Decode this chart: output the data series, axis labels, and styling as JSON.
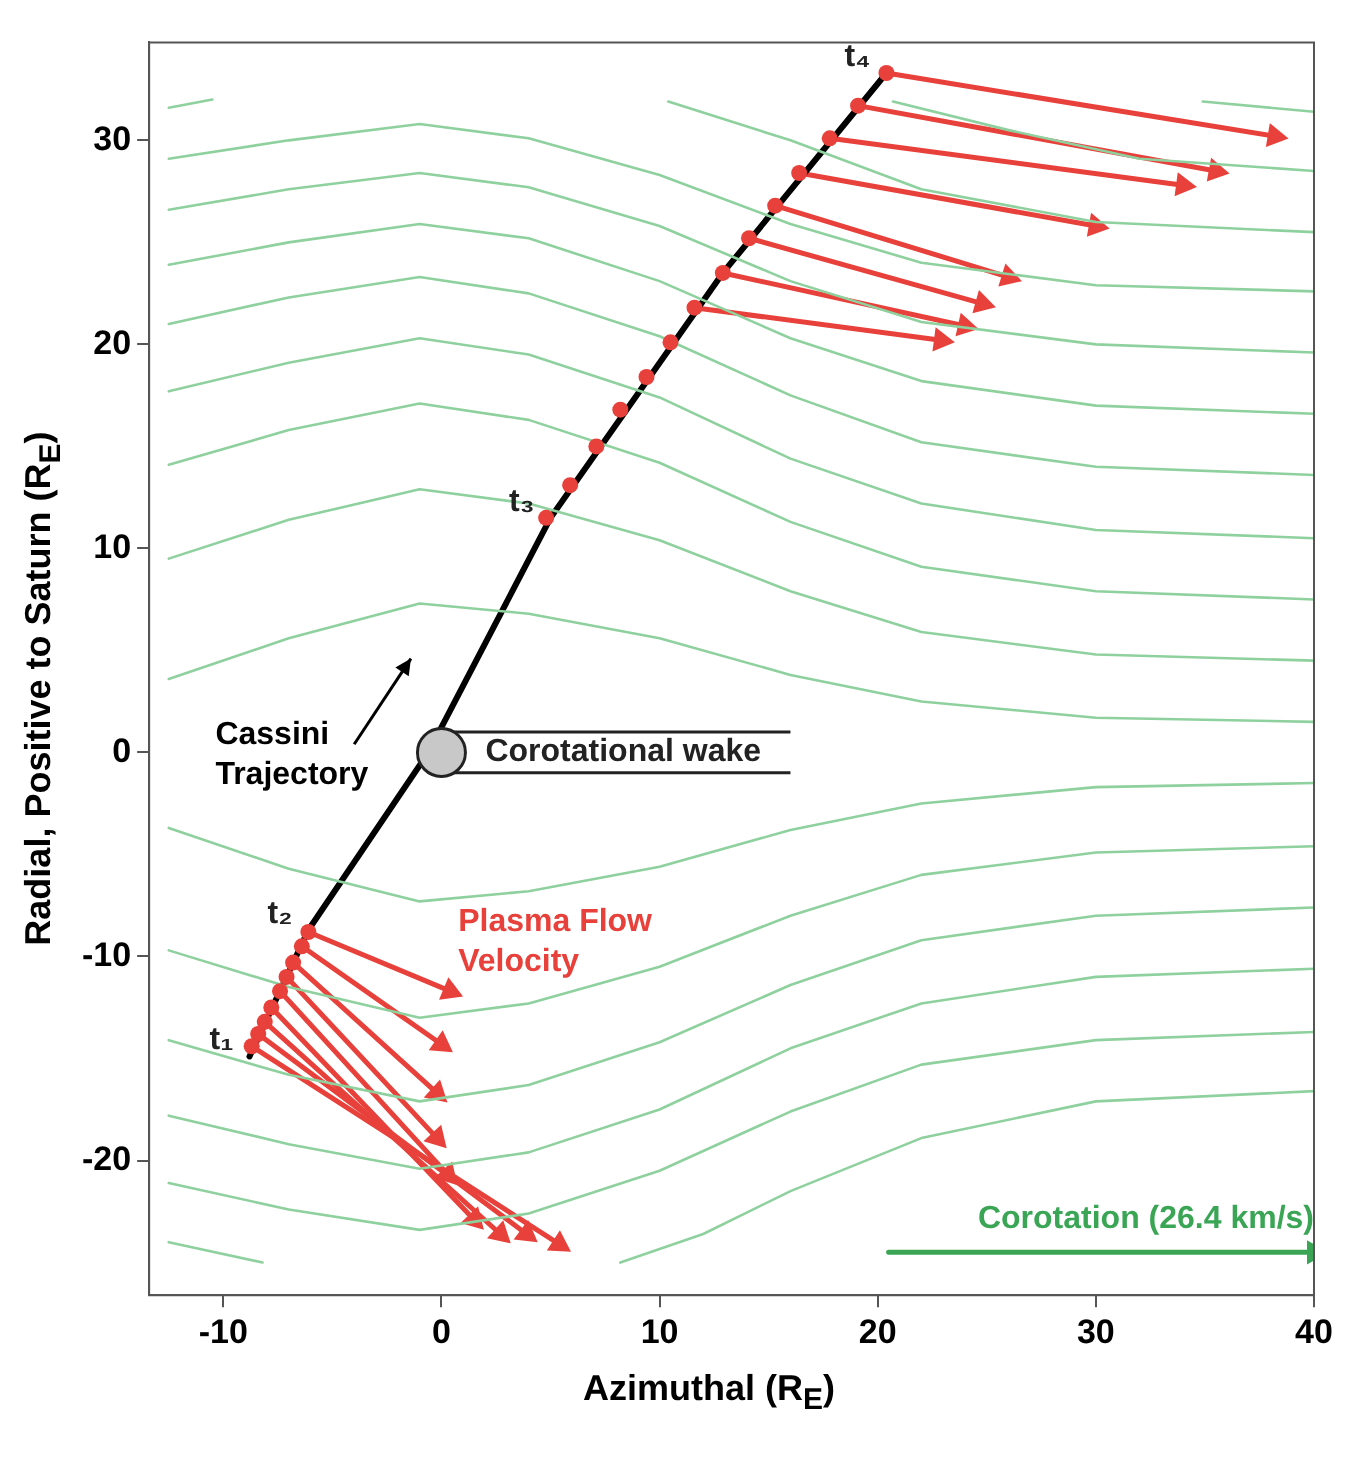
{
  "chart_data": {
    "type": "line",
    "xlabel": "Azimuthal (R$_{E}$)",
    "ylabel": "Radial, Positive to Saturn (R$_{E}$)",
    "xlim": [
      -13.4,
      40
    ],
    "ylim": [
      -26.6,
      34.8
    ],
    "xticks": [
      -10,
      0,
      10,
      20,
      30,
      40
    ],
    "yticks": [
      -20,
      -10,
      0,
      10,
      20,
      30
    ],
    "grid": false,
    "legend": false,
    "annotations": [
      "Corotational wake",
      {
        "text": "t₁",
        "x": -8.8,
        "y": -14.9
      },
      {
        "text": "t₂",
        "x": -6.1,
        "y": -8.7
      },
      {
        "text": "t₃",
        "x": 5.0,
        "y": 11.5
      },
      {
        "text": "t₄",
        "x": 20.4,
        "y": 33.3
      }
    ],
    "series": [
      {
        "type": "line",
        "color": "#8fd19e",
        "marker": "none",
        "x": [
          -12.5,
          -7,
          -1,
          4,
          10,
          16,
          22,
          30,
          40
        ],
        "values": [
          3.6,
          5.6,
          7.3,
          6.8,
          5.6,
          3.8,
          2.5,
          1.7,
          1.5
        ]
      },
      {
        "type": "line",
        "color": "#8fd19e",
        "marker": "none",
        "x": [
          -12.5,
          -7,
          -1,
          4,
          10,
          16,
          22,
          30,
          40
        ],
        "values": [
          9.5,
          11.4,
          12.9,
          12.2,
          10.4,
          7.9,
          5.9,
          4.8,
          4.5
        ]
      },
      {
        "type": "line",
        "color": "#8fd19e",
        "marker": "none",
        "x": [
          -12.5,
          -7,
          -1,
          4,
          10,
          16,
          22,
          30,
          40
        ],
        "values": [
          14.1,
          15.8,
          17.1,
          16.3,
          14.2,
          11.3,
          9.1,
          7.9,
          7.5
        ]
      },
      {
        "type": "line",
        "color": "#8fd19e",
        "marker": "none",
        "x": [
          -12.5,
          -7,
          -1,
          4,
          10,
          16,
          22,
          30,
          40
        ],
        "values": [
          17.7,
          19.1,
          20.3,
          19.5,
          17.4,
          14.4,
          12.2,
          10.9,
          10.5
        ]
      },
      {
        "type": "line",
        "color": "#8fd19e",
        "marker": "none",
        "x": [
          -12.5,
          -7,
          -1,
          4,
          10,
          16,
          22,
          30,
          40
        ],
        "values": [
          21.0,
          22.3,
          23.3,
          22.5,
          20.4,
          17.5,
          15.2,
          14.0,
          13.6
        ]
      },
      {
        "type": "line",
        "color": "#8fd19e",
        "marker": "none",
        "x": [
          -12.5,
          -7,
          -1,
          4,
          10,
          16,
          22,
          30,
          40
        ],
        "values": [
          23.9,
          25.0,
          25.9,
          25.2,
          23.1,
          20.3,
          18.2,
          17.0,
          16.6
        ]
      },
      {
        "type": "line",
        "color": "#8fd19e",
        "marker": "none",
        "x": [
          -12.5,
          -7,
          -1,
          4,
          10,
          16,
          22,
          30,
          40
        ],
        "values": [
          26.6,
          27.6,
          28.4,
          27.7,
          25.8,
          23.1,
          21.1,
          20.0,
          19.6
        ]
      },
      {
        "type": "line",
        "color": "#8fd19e",
        "marker": "none",
        "x": [
          -12.5,
          -7,
          -1,
          4,
          10,
          16,
          22,
          30,
          40
        ],
        "values": [
          29.1,
          30.0,
          30.8,
          30.1,
          28.3,
          25.9,
          24.0,
          22.9,
          22.6
        ]
      },
      {
        "type": "line",
        "color": "#8fd19e",
        "marker": "none",
        "x": [
          -12.5,
          -10.5
        ],
        "values": [
          31.6,
          32.0
        ]
      },
      {
        "type": "line",
        "color": "#8fd19e",
        "marker": "none",
        "x": [
          10.4,
          16,
          22,
          30,
          40
        ],
        "values": [
          31.9,
          30.0,
          27.6,
          26.0,
          25.5
        ]
      },
      {
        "type": "line",
        "color": "#8fd19e",
        "marker": "none",
        "x": [
          20.7,
          26,
          32,
          40
        ],
        "values": [
          31.9,
          30.5,
          29.1,
          28.5
        ]
      },
      {
        "type": "line",
        "color": "#8fd19e",
        "marker": "none",
        "x": [
          34.9,
          40
        ],
        "values": [
          31.9,
          31.4
        ]
      },
      {
        "type": "line",
        "color": "#8fd19e",
        "marker": "none",
        "x": [
          -12.5,
          -7,
          -1,
          4,
          10,
          16,
          22,
          30,
          40
        ],
        "values": [
          -3.7,
          -5.7,
          -7.3,
          -6.8,
          -5.6,
          -3.8,
          -2.5,
          -1.7,
          -1.5
        ]
      },
      {
        "type": "line",
        "color": "#8fd19e",
        "marker": "none",
        "x": [
          -12.5,
          -7,
          -1,
          4,
          10,
          16,
          22,
          30,
          40
        ],
        "values": [
          -9.7,
          -11.5,
          -13.0,
          -12.3,
          -10.5,
          -8.0,
          -6.0,
          -4.9,
          -4.6
        ]
      },
      {
        "type": "line",
        "color": "#8fd19e",
        "marker": "none",
        "x": [
          -12.5,
          -7,
          -1,
          4,
          10,
          16,
          22,
          30,
          40
        ],
        "values": [
          -14.1,
          -15.8,
          -17.1,
          -16.3,
          -14.2,
          -11.4,
          -9.2,
          -8.0,
          -7.6
        ]
      },
      {
        "type": "line",
        "color": "#8fd19e",
        "marker": "none",
        "x": [
          -12.5,
          -7,
          -1,
          4,
          10,
          16,
          22,
          30,
          40
        ],
        "values": [
          -17.8,
          -19.2,
          -20.4,
          -19.6,
          -17.5,
          -14.5,
          -12.3,
          -11.0,
          -10.6
        ]
      },
      {
        "type": "line",
        "color": "#8fd19e",
        "marker": "none",
        "x": [
          -12.5,
          -7,
          -1,
          4,
          10,
          16,
          22,
          30,
          40
        ],
        "values": [
          -21.1,
          -22.4,
          -23.4,
          -22.6,
          -20.5,
          -17.6,
          -15.3,
          -14.1,
          -13.7
        ]
      },
      {
        "type": "line",
        "color": "#8fd19e",
        "marker": "none",
        "x": [
          -12.5,
          -8.2
        ],
        "values": [
          -24.0,
          -25.0
        ]
      },
      {
        "type": "line",
        "color": "#8fd19e",
        "marker": "none",
        "x": [
          8.2,
          12,
          16,
          22,
          30,
          40
        ],
        "values": [
          -25.0,
          -23.6,
          -21.5,
          -18.9,
          -17.1,
          -16.6
        ]
      },
      {
        "name": "Cassini Trajectory",
        "type": "line",
        "color": "#000000",
        "marker": "none",
        "x": [
          -8.8,
          -6.1,
          -0.6,
          5.0,
          12.9,
          20.4
        ],
        "values": [
          -14.9,
          -8.7,
          0.0,
          11.5,
          23.5,
          33.3
        ]
      },
      {
        "name": "Plasma Flow Velocity",
        "type": "line",
        "color": "#e8403a",
        "marker": "triangle",
        "x": [
          -6.1,
          0.4
        ],
        "values": [
          -8.8,
          -11.7
        ]
      },
      {
        "type": "line",
        "color": "#e8403a",
        "marker": "triangle",
        "x": [
          -6.4,
          0.0
        ],
        "values": [
          -9.5,
          -14.3
        ]
      },
      {
        "type": "line",
        "color": "#e8403a",
        "marker": "triangle",
        "x": [
          -6.8,
          -0.2
        ],
        "values": [
          -10.3,
          -16.7
        ]
      },
      {
        "type": "line",
        "color": "#e8403a",
        "marker": "triangle",
        "x": [
          -7.1,
          -0.2
        ],
        "values": [
          -11.0,
          -18.9
        ]
      },
      {
        "type": "line",
        "color": "#e8403a",
        "marker": "triangle",
        "x": [
          -7.4,
          0.3
        ],
        "values": [
          -11.7,
          -20.7
        ]
      },
      {
        "type": "line",
        "color": "#e8403a",
        "marker": "triangle",
        "x": [
          -7.8,
          1.5
        ],
        "values": [
          -12.5,
          -22.9
        ]
      },
      {
        "type": "line",
        "color": "#e8403a",
        "marker": "triangle",
        "x": [
          -8.1,
          2.7
        ],
        "values": [
          -13.2,
          -23.6
        ]
      },
      {
        "type": "line",
        "color": "#e8403a",
        "marker": "triangle",
        "x": [
          -8.4,
          3.9
        ],
        "values": [
          -13.8,
          -23.6
        ]
      },
      {
        "type": "line",
        "color": "#e8403a",
        "marker": "triangle",
        "x": [
          -8.7,
          5.4
        ],
        "values": [
          -14.4,
          -24.1
        ]
      },
      {
        "type": "line",
        "color": "#e8403a",
        "marker": "triangle",
        "x": [
          11.6,
          22.9
        ],
        "values": [
          21.8,
          20.2
        ]
      },
      {
        "type": "line",
        "color": "#e8403a",
        "marker": "triangle",
        "x": [
          12.9,
          24.0
        ],
        "values": [
          23.5,
          20.9
        ]
      },
      {
        "type": "line",
        "color": "#e8403a",
        "marker": "triangle",
        "x": [
          14.1,
          24.8
        ],
        "values": [
          25.2,
          22.0
        ]
      },
      {
        "type": "line",
        "color": "#e8403a",
        "marker": "triangle",
        "x": [
          15.3,
          26.0
        ],
        "values": [
          26.8,
          23.3
        ]
      },
      {
        "type": "line",
        "color": "#e8403a",
        "marker": "triangle",
        "x": [
          16.4,
          30.0
        ],
        "values": [
          28.4,
          25.8
        ]
      },
      {
        "type": "line",
        "color": "#e8403a",
        "marker": "triangle",
        "x": [
          17.8,
          34.0
        ],
        "values": [
          30.1,
          27.8
        ]
      },
      {
        "type": "line",
        "color": "#e8403a",
        "marker": "triangle",
        "x": [
          19.1,
          35.5
        ],
        "values": [
          31.7,
          28.5
        ]
      },
      {
        "type": "line",
        "color": "#e8403a",
        "marker": "triangle",
        "x": [
          20.4,
          38.2
        ],
        "values": [
          33.3,
          30.2
        ]
      },
      {
        "type": "scatter",
        "color": "#e8403a",
        "marker": "circle",
        "x": [
          4.8,
          5.9,
          7.1,
          8.2,
          9.4,
          10.5,
          11.6,
          12.9,
          14.1,
          15.3,
          16.4,
          17.8,
          19.1,
          20.4,
          -6.1,
          -6.4,
          -6.8,
          -7.1,
          -7.4,
          -7.8,
          -8.1,
          -8.4,
          -8.7
        ],
        "values": [
          11.5,
          13.1,
          15.0,
          16.8,
          18.4,
          20.1,
          21.8,
          23.5,
          25.2,
          26.8,
          28.4,
          30.1,
          31.7,
          33.3,
          -8.8,
          -9.5,
          -10.3,
          -11.0,
          -11.7,
          -12.5,
          -13.2,
          -13.8,
          -14.4
        ]
      },
      {
        "name": "Corotation (26.4 km/s)",
        "type": "line",
        "color": "#3aa655",
        "marker": "triangle",
        "x": [
          20.5,
          40
        ],
        "values": [
          -24.5,
          -24.5
        ]
      }
    ]
  }
}
